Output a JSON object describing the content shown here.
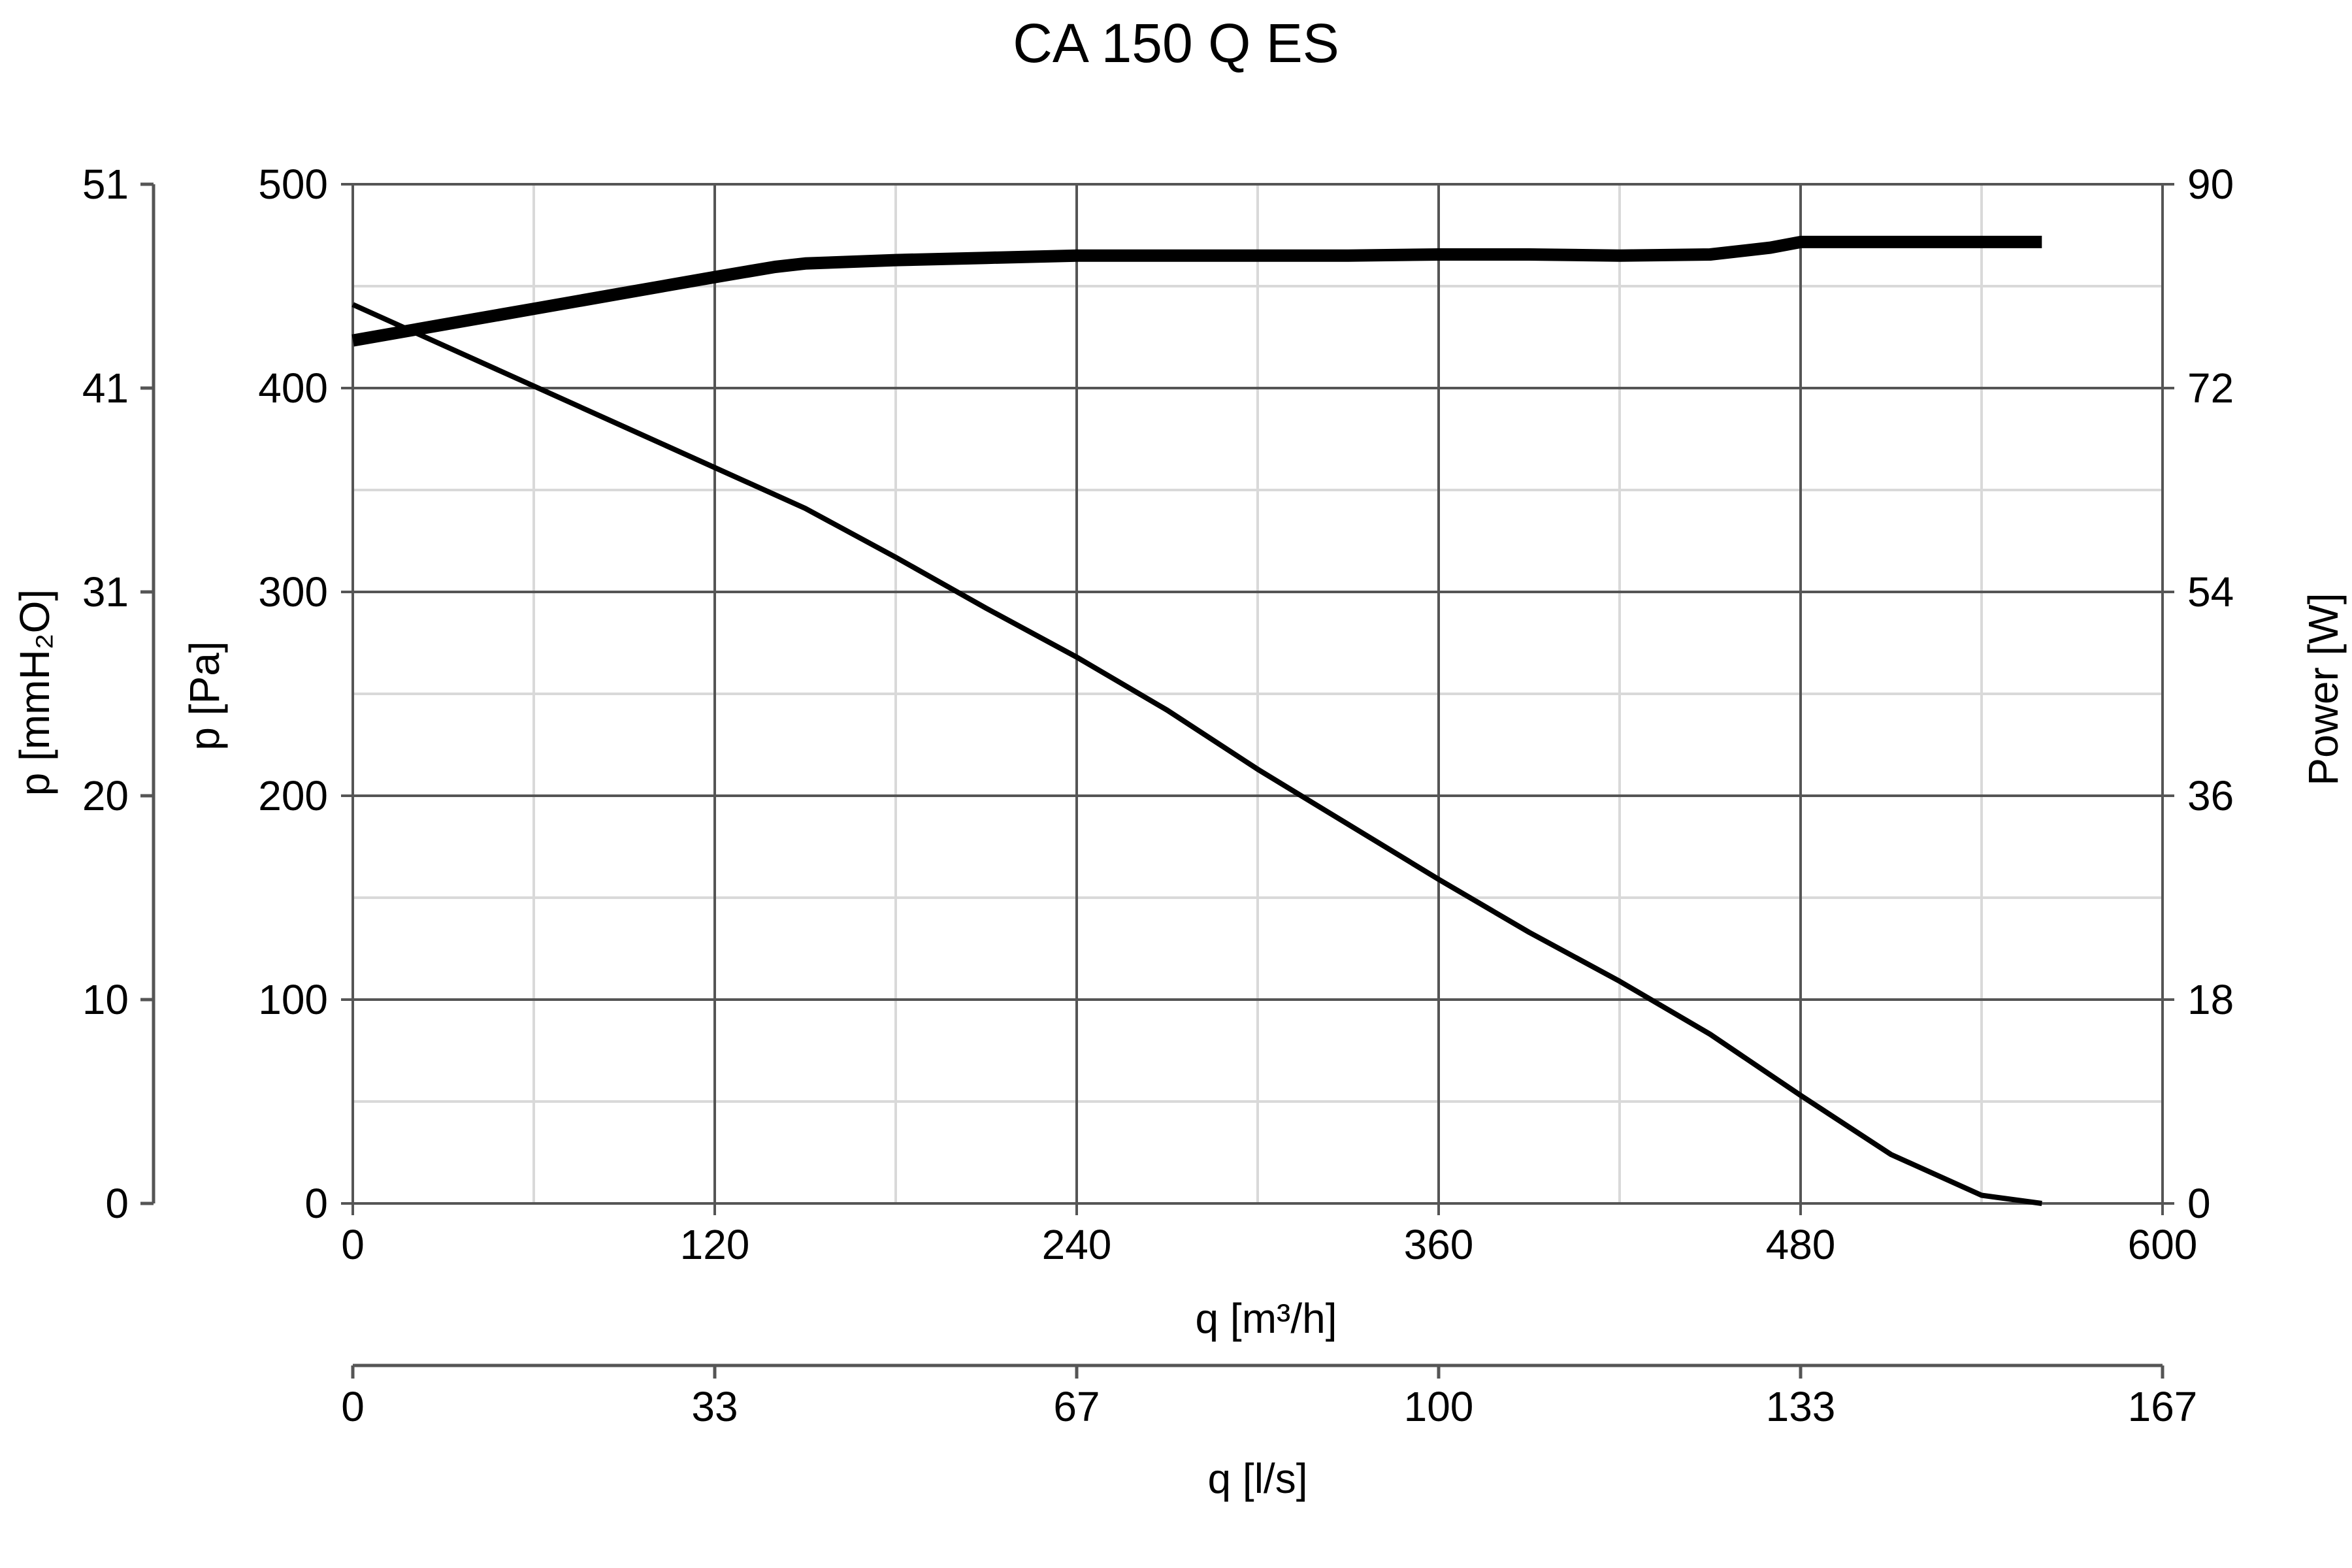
{
  "chart_data": {
    "type": "line",
    "title": "CA 150 Q ES",
    "xlabel": "q [m³/h]",
    "xlabel_secondary": "q [l/s]",
    "ylabel": "p [Pa]",
    "ylabel_outer": "p [mmH₂O]",
    "ylabel_right": "Power [W]",
    "xlim": [
      0,
      600
    ],
    "ylim": [
      0,
      500
    ],
    "ylim_right": [
      0,
      90
    ],
    "x_ticks": [
      "0",
      "120",
      "240",
      "360",
      "480",
      "600"
    ],
    "x_ticks_secondary": [
      "0",
      "33",
      "67",
      "100",
      "133",
      "167"
    ],
    "y_ticks": [
      "0",
      "100",
      "200",
      "300",
      "400",
      "500"
    ],
    "y_ticks_outer": [
      "0",
      "10",
      "20",
      "31",
      "41",
      "51"
    ],
    "y_ticks_right": [
      "0",
      "18",
      "36",
      "54",
      "72",
      "90"
    ],
    "grid": true,
    "series": [
      {
        "axis": "left",
        "line_weight": "thin",
        "x": [
          0,
          30,
          60,
          90,
          120,
          150,
          180,
          210,
          240,
          270,
          300,
          330,
          360,
          390,
          420,
          450,
          480,
          510,
          540,
          560
        ],
        "y": [
          441,
          421,
          401,
          381,
          361,
          341,
          317,
          292,
          268,
          242,
          213,
          186,
          159,
          133,
          109,
          83,
          53,
          24,
          4,
          0
        ]
      },
      {
        "axis": "right",
        "line_weight": "thick",
        "x": [
          0,
          30,
          60,
          90,
          120,
          140,
          150,
          180,
          210,
          240,
          270,
          300,
          330,
          360,
          390,
          420,
          450,
          470,
          480,
          500,
          530,
          560
        ],
        "y": [
          76.2,
          77.6,
          79.0,
          80.4,
          81.8,
          82.7,
          83.0,
          83.3,
          83.5,
          83.7,
          83.7,
          83.7,
          83.7,
          83.8,
          83.8,
          83.7,
          83.8,
          84.4,
          84.9,
          84.9,
          84.9,
          84.9
        ]
      }
    ]
  }
}
